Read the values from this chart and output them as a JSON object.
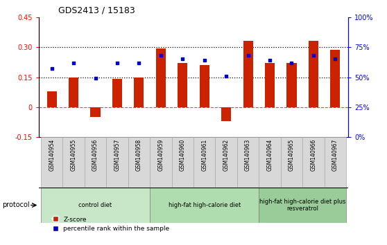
{
  "title": "GDS2413 / 15183",
  "samples": [
    "GSM140954",
    "GSM140955",
    "GSM140956",
    "GSM140957",
    "GSM140958",
    "GSM140959",
    "GSM140960",
    "GSM140961",
    "GSM140962",
    "GSM140963",
    "GSM140964",
    "GSM140965",
    "GSM140966",
    "GSM140967"
  ],
  "z_scores": [
    0.08,
    0.15,
    -0.05,
    0.14,
    0.15,
    0.295,
    0.22,
    0.21,
    -0.07,
    0.33,
    0.22,
    0.22,
    0.33,
    0.285
  ],
  "percentile_ranks_normalized": [
    0.57,
    0.62,
    0.49,
    0.62,
    0.62,
    0.68,
    0.65,
    0.64,
    0.51,
    0.68,
    0.64,
    0.62,
    0.68,
    0.65
  ],
  "groups": [
    {
      "label": "control diet",
      "start": 0,
      "end": 5,
      "color": "#c8e6c8"
    },
    {
      "label": "high-fat high-calorie diet",
      "start": 5,
      "end": 10,
      "color": "#b0ddb0"
    },
    {
      "label": "high-fat high-calorie diet plus\nresveratrol",
      "start": 10,
      "end": 14,
      "color": "#99cc99"
    }
  ],
  "bar_color": "#cc2200",
  "dot_color": "#0000cc",
  "ylim_left": [
    -0.15,
    0.45
  ],
  "ylim_right": [
    0,
    100
  ],
  "yticks_left": [
    -0.15,
    0.0,
    0.15,
    0.3,
    0.45
  ],
  "ytick_labels_left": [
    "-0.15",
    "0",
    "0.15",
    "0.30",
    "0.45"
  ],
  "yticks_right": [
    0,
    25,
    50,
    75,
    100
  ],
  "ytick_labels_right": [
    "0%",
    "25%",
    "50%",
    "75%",
    "100%"
  ],
  "hline_0": 0.0,
  "hline_015": 0.15,
  "hline_030": 0.3,
  "legend_zscore": "Z-score",
  "legend_percentile": "percentile rank within the sample",
  "protocol_label": "protocol",
  "sample_box_color": "#d8d8d8",
  "sample_box_edge": "#aaaaaa"
}
